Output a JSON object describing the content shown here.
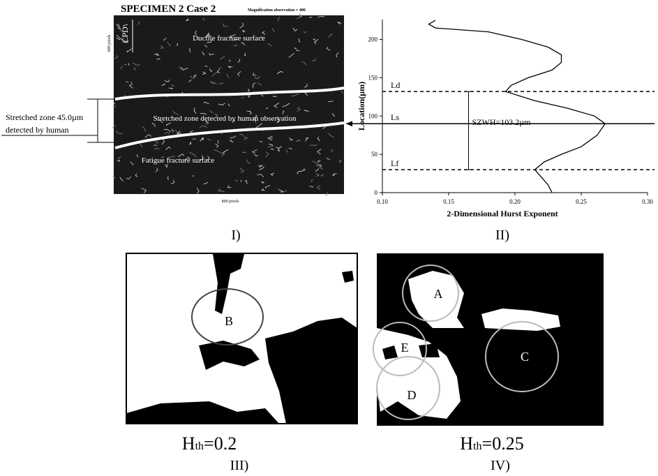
{
  "panel1": {
    "title": "SPECIMEN 2 Case 2",
    "magnification": "Magnification observation = 400",
    "height_label": "600 pixels",
    "width_label": "800 pixels",
    "cpd": "CPD",
    "ductile": "Ductile fracture surface",
    "stretched": "Stretched zone detected by human observation",
    "fatigue": "Fatigue fracture surface",
    "annotation_line1": "Stretched zone 45.0µm",
    "annotation_line2": "detected by human",
    "label": "I)"
  },
  "chart_data": {
    "type": "line",
    "xlabel": "2-Dimensional Hurst Exponent",
    "ylabel": "Location(µm)",
    "x": [
      0.228,
      0.225,
      0.22,
      0.215,
      0.222,
      0.235,
      0.25,
      0.262,
      0.268,
      0.26,
      0.24,
      0.215,
      0.193,
      0.197,
      0.21,
      0.228,
      0.235,
      0.235,
      0.225,
      0.205,
      0.18,
      0.14,
      0.135,
      0.14
    ],
    "values": [
      0,
      10,
      20,
      30,
      40,
      50,
      60,
      75,
      90,
      100,
      110,
      120,
      132,
      140,
      150,
      160,
      170,
      180,
      190,
      200,
      210,
      215,
      220,
      225
    ],
    "color": "#000000",
    "xlim": [
      0.1,
      0.3
    ],
    "ylim": [
      0,
      226
    ],
    "xticks": [
      {
        "value": 0.1,
        "label": "0.10"
      },
      0.15,
      {
        "value": 0.2,
        "label": "0.20"
      },
      0.25,
      {
        "value": 0.3,
        "label": "0.30"
      }
    ],
    "yticks": [
      0,
      50,
      100,
      150,
      200
    ],
    "reference_lines": [
      {
        "label": "Ld",
        "value": 132,
        "style": "dashed"
      },
      {
        "label": "Ls",
        "value": 90,
        "style": "solid"
      },
      {
        "label": "Lf",
        "value": 30,
        "style": "dashed"
      }
    ],
    "annotation": "SZWH=103.2µm",
    "label": "II)"
  },
  "panel3": {
    "circle": "B",
    "caption_main": "H",
    "caption_sub": "th",
    "caption_value": "=0.2",
    "label": "III)"
  },
  "panel4": {
    "circles": [
      "A",
      "E",
      "D",
      "C"
    ],
    "caption_main": "H",
    "caption_sub": "th",
    "caption_value": "=0.25",
    "label": "IV)"
  }
}
